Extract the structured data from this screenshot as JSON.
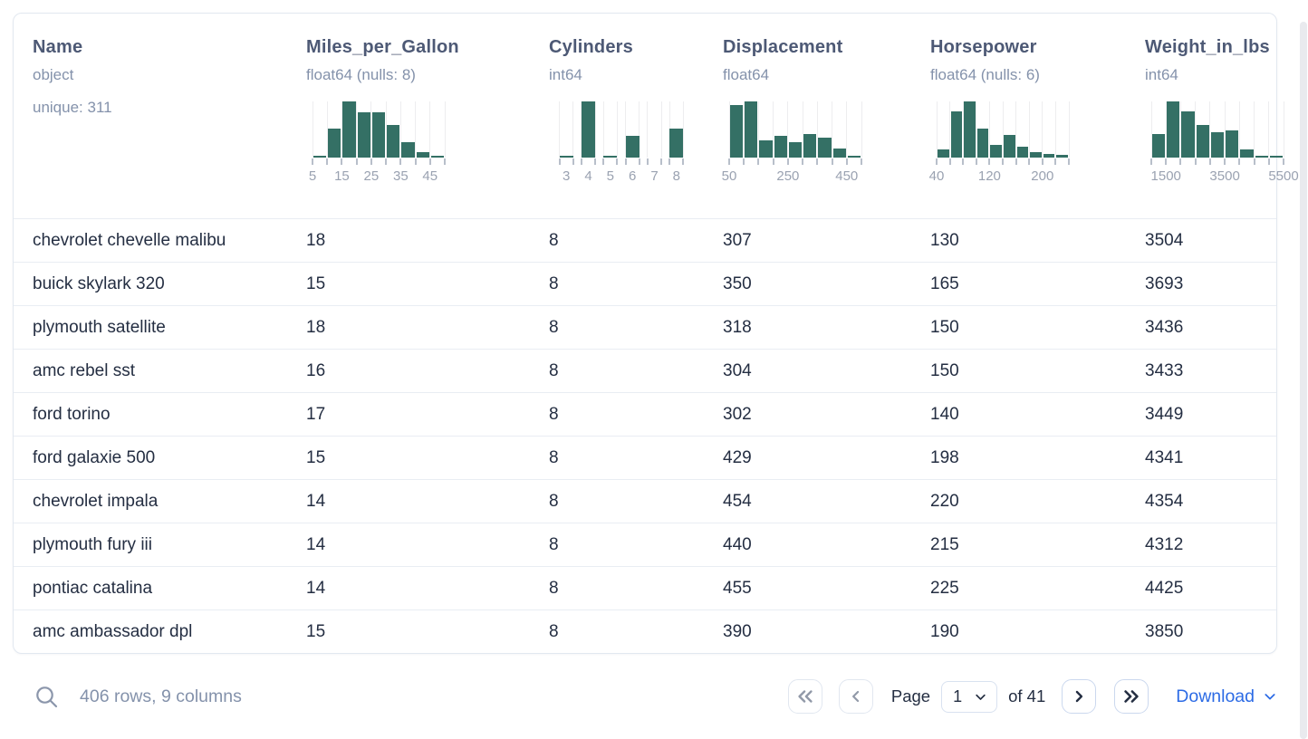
{
  "table": {
    "columns": [
      {
        "name": "Name",
        "type": "object",
        "extra": "unique: 311",
        "hist": null
      },
      {
        "name": "Miles_per_Gallon",
        "type": "float64 (nulls: 8)",
        "hist": 0
      },
      {
        "name": "Cylinders",
        "type": "int64",
        "hist": 1
      },
      {
        "name": "Displacement",
        "type": "float64",
        "hist": 2
      },
      {
        "name": "Horsepower",
        "type": "float64 (nulls: 6)",
        "hist": 3
      },
      {
        "name": "Weight_in_lbs",
        "type": "int64",
        "hist": 4
      }
    ],
    "rows": [
      [
        "chevrolet chevelle malibu",
        "18",
        "8",
        "307",
        "130",
        "3504"
      ],
      [
        "buick skylark 320",
        "15",
        "8",
        "350",
        "165",
        "3693"
      ],
      [
        "plymouth satellite",
        "18",
        "8",
        "318",
        "150",
        "3436"
      ],
      [
        "amc rebel sst",
        "16",
        "8",
        "304",
        "150",
        "3433"
      ],
      [
        "ford torino",
        "17",
        "8",
        "302",
        "140",
        "3449"
      ],
      [
        "ford galaxie 500",
        "15",
        "8",
        "429",
        "198",
        "4341"
      ],
      [
        "chevrolet impala",
        "14",
        "8",
        "454",
        "220",
        "4354"
      ],
      [
        "plymouth fury iii",
        "14",
        "8",
        "440",
        "215",
        "4312"
      ],
      [
        "pontiac catalina",
        "14",
        "8",
        "455",
        "225",
        "4425"
      ],
      [
        "amc ambassador dpl",
        "15",
        "8",
        "390",
        "190",
        "3850"
      ]
    ]
  },
  "chart_data": [
    {
      "type": "bar",
      "subtype": "histogram",
      "column": "Miles_per_Gallon",
      "bin_start": 5,
      "bin_width": 5,
      "heights_pct": [
        2,
        52,
        100,
        80,
        80,
        58,
        28,
        9,
        2
      ],
      "tick_labels": [
        {
          "text": "5",
          "tick": 0
        },
        {
          "text": "15",
          "tick": 2
        },
        {
          "text": "25",
          "tick": 4
        },
        {
          "text": "35",
          "tick": 6
        },
        {
          "text": "45",
          "tick": 8
        }
      ]
    },
    {
      "type": "bar",
      "subtype": "histogram",
      "column": "Cylinders",
      "discrete": true,
      "categories": [
        "3",
        "4",
        "5",
        "6",
        "7",
        "8"
      ],
      "heights_pct": [
        3,
        100,
        2,
        38,
        0,
        52
      ]
    },
    {
      "type": "bar",
      "subtype": "histogram",
      "column": "Displacement",
      "bin_start": 50,
      "bin_width": 50,
      "heights_pct": [
        93,
        100,
        30,
        38,
        27,
        42,
        36,
        16,
        4
      ],
      "tick_labels": [
        {
          "text": "50",
          "tick": 0
        },
        {
          "text": "250",
          "tick": 4
        },
        {
          "text": "450",
          "tick": 8
        }
      ]
    },
    {
      "type": "bar",
      "subtype": "histogram",
      "column": "Horsepower",
      "bin_start": 40,
      "bin_width": 20,
      "heights_pct": [
        14,
        82,
        100,
        52,
        22,
        40,
        20,
        9,
        6,
        5
      ],
      "tick_labels": [
        {
          "text": "40",
          "tick": 0
        },
        {
          "text": "120",
          "tick": 4
        },
        {
          "text": "200",
          "tick": 8
        }
      ]
    },
    {
      "type": "bar",
      "subtype": "histogram",
      "column": "Weight_in_lbs",
      "bin_start": 1000,
      "bin_width": 500,
      "heights_pct": [
        42,
        100,
        82,
        58,
        45,
        48,
        15,
        3,
        2
      ],
      "tick_labels": [
        {
          "text": "1500",
          "tick": 1
        },
        {
          "text": "3500",
          "tick": 5
        },
        {
          "text": "5500",
          "tick": 9
        }
      ]
    }
  ],
  "footer": {
    "summary": "406 rows, 9 columns",
    "search_icon": "magnifier",
    "page_label": "Page",
    "page_value": "1",
    "of_label": "of 41",
    "first_icon": "double-chevron-left",
    "prev_icon": "chevron-left",
    "next_icon": "chevron-right",
    "last_icon": "double-chevron-right",
    "download_label": "Download"
  },
  "colors": {
    "bar": "#347065",
    "title": "#4d5975",
    "subtitle": "#8492ab",
    "cell_text": "#242e42",
    "link_blue": "#2c6be5",
    "tick": "#b8bfca",
    "tick_label": "#9aa2b1"
  }
}
